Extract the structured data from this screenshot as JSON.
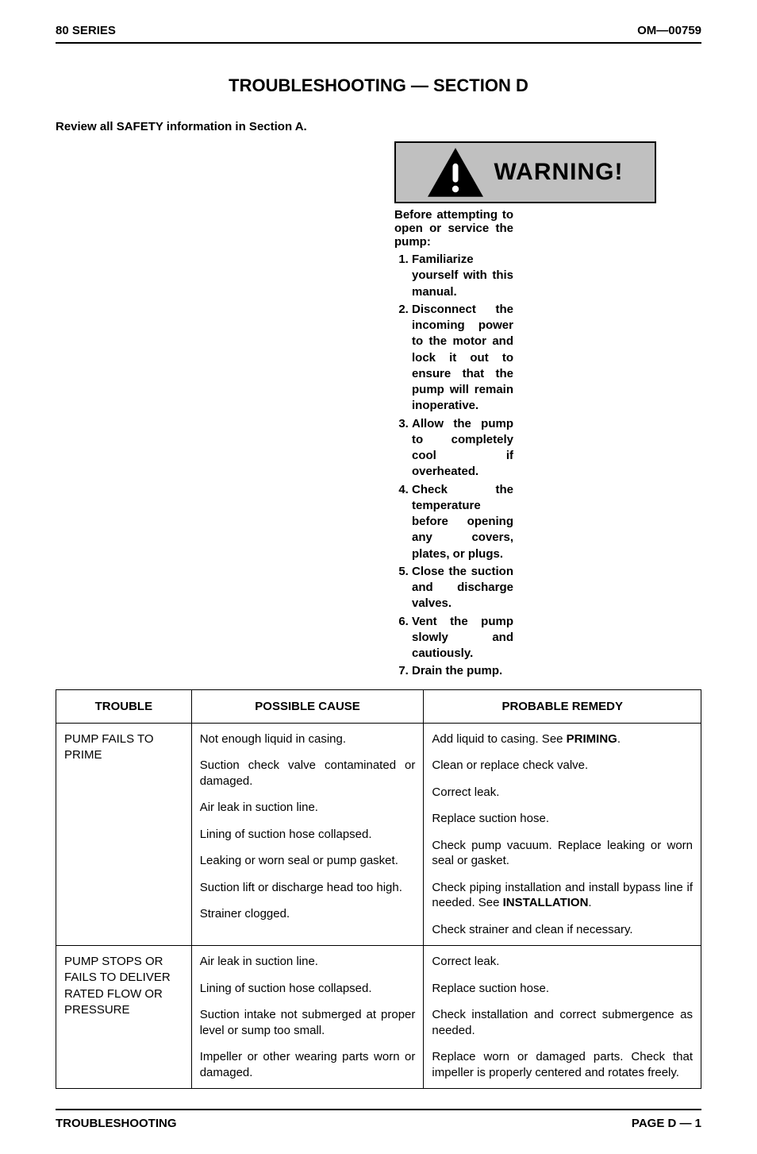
{
  "header": {
    "left": "80 SERIES",
    "right": "OM—00759"
  },
  "section_title": "TROUBLESHOOTING — SECTION D",
  "review_text": "Review all SAFETY information in Section A.",
  "warning": {
    "label": "WARNING!",
    "intro": "Before attempting to open or service the pump:",
    "items": [
      "Familiarize yourself with this manual.",
      "Disconnect the incoming power to the motor and lock it out to ensure that the pump will remain inoperative.",
      "Allow the pump to completely cool if overheated.",
      "Check the temperature before opening any covers, plates, or plugs.",
      "Close the suction and discharge valves.",
      "Vent the pump slowly and cautiously.",
      "Drain the pump."
    ]
  },
  "table": {
    "headers": {
      "trouble": "TROUBLE",
      "cause": "POSSIBLE CAUSE",
      "remedy": "PROBABLE REMEDY"
    },
    "rows": [
      {
        "trouble": "PUMP FAILS TO PRIME",
        "causes": [
          "Not enough liquid in casing.",
          "Suction check valve contaminated or damaged.",
          "Air leak in suction line.",
          "Lining of suction hose collapsed.",
          "Leaking or worn seal or pump gasket.",
          "Suction lift or discharge head too high.",
          "Strainer clogged."
        ],
        "remedies": [
          "Add liquid to casing. See <b>PRIMING</b>.",
          "Clean or replace check valve.",
          "Correct leak.",
          "Replace suction hose.",
          "Check pump vacuum. Replace leaking or worn seal or gasket.",
          "Check piping installation and install bypass line if needed. See <b>INSTALLATION</b>.",
          "Check strainer and clean if necessary."
        ]
      },
      {
        "trouble": "PUMP STOPS OR FAILS TO DELIVER RATED FLOW OR PRESSURE",
        "causes": [
          "Air leak in suction line.",
          "Lining of suction hose collapsed.",
          "Suction intake not submerged at proper level or sump too small.",
          "Impeller or other wearing parts worn or damaged."
        ],
        "remedies": [
          "Correct leak.",
          "Replace suction hose.",
          "Check installation and correct submergence as needed.",
          "Replace worn or damaged parts. Check that impeller is properly centered and rotates freely."
        ]
      }
    ]
  },
  "footer": {
    "left": "TROUBLESHOOTING",
    "right": "PAGE D — 1"
  },
  "style": {
    "page_bg": "#ffffff",
    "text_color": "#000000",
    "warning_bg": "#c0c0c0",
    "border_color": "#000000",
    "font_family": "Arial, Helvetica, sans-serif",
    "title_fontsize": 22,
    "body_fontsize": 15,
    "warning_fontsize": 30
  }
}
